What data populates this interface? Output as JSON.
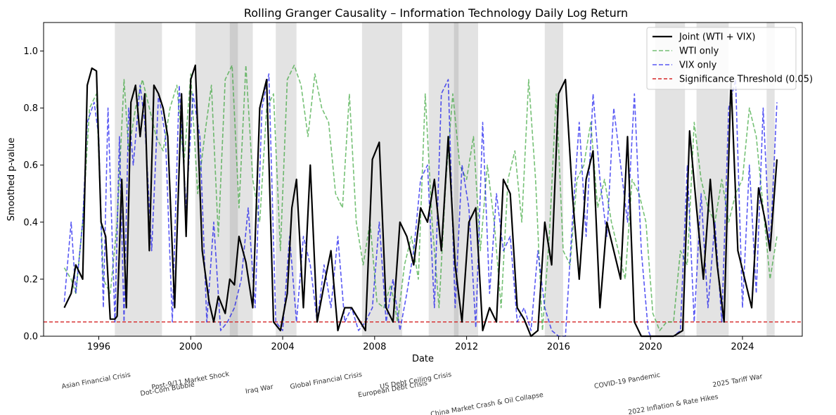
{
  "chart_data": {
    "type": "line",
    "title": "Rolling Granger Causality – Information Technology Daily Log Return",
    "xlabel": "Date",
    "ylabel": "Smoothed p-value",
    "xlim": [
      1993.6,
      2026.6
    ],
    "ylim": [
      0.0,
      1.1
    ],
    "x_ticks": [
      1996,
      2000,
      2004,
      2008,
      2012,
      2016,
      2020,
      2024
    ],
    "y_ticks": [
      0.0,
      0.2,
      0.4,
      0.6,
      0.8,
      1.0
    ],
    "grid": false,
    "legend_position": "top-right",
    "threshold": {
      "name": "Significance Threshold (0.05)",
      "value": 0.05,
      "color": "#d62728"
    },
    "series": [
      {
        "name": "Joint (WTI + VIX)",
        "color": "#000000",
        "style": "solid",
        "x": [
          1994.5,
          1994.8,
          1995.0,
          1995.3,
          1995.5,
          1995.7,
          1995.9,
          1996.1,
          1996.3,
          1996.5,
          1996.7,
          1996.8,
          1997.0,
          1997.2,
          1997.4,
          1997.6,
          1997.8,
          1998.0,
          1998.2,
          1998.4,
          1998.6,
          1998.8,
          1999.0,
          1999.3,
          1999.6,
          1999.8,
          2000.0,
          2000.2,
          2000.5,
          2000.8,
          2001.0,
          2001.2,
          2001.5,
          2001.7,
          2001.9,
          2002.1,
          2002.4,
          2002.7,
          2003.0,
          2003.3,
          2003.6,
          2003.9,
          2004.2,
          2004.4,
          2004.6,
          2004.9,
          2005.2,
          2005.5,
          2005.8,
          2006.1,
          2006.4,
          2006.7,
          2007.0,
          2007.3,
          2007.6,
          2007.9,
          2008.2,
          2008.5,
          2008.8,
          2009.1,
          2009.4,
          2009.7,
          2010.0,
          2010.3,
          2010.6,
          2010.9,
          2011.2,
          2011.5,
          2011.8,
          2012.1,
          2012.4,
          2012.7,
          2013.0,
          2013.3,
          2013.6,
          2013.9,
          2014.2,
          2014.5,
          2014.8,
          2015.1,
          2015.4,
          2015.7,
          2016.0,
          2016.3,
          2016.6,
          2016.9,
          2017.2,
          2017.5,
          2017.8,
          2018.1,
          2018.4,
          2018.7,
          2019.0,
          2019.3,
          2019.6,
          2019.9,
          2020.0,
          2020.5,
          2021.0,
          2021.4,
          2021.7,
          2022.0,
          2022.3,
          2022.6,
          2022.9,
          2023.2,
          2023.5,
          2023.8,
          2024.1,
          2024.4,
          2024.7,
          2025.0,
          2025.2,
          2025.5
        ],
        "values": [
          0.1,
          0.15,
          0.25,
          0.2,
          0.88,
          0.94,
          0.93,
          0.4,
          0.35,
          0.06,
          0.06,
          0.07,
          0.55,
          0.1,
          0.82,
          0.88,
          0.7,
          0.85,
          0.3,
          0.88,
          0.85,
          0.8,
          0.7,
          0.1,
          0.85,
          0.35,
          0.9,
          0.95,
          0.3,
          0.12,
          0.05,
          0.14,
          0.08,
          0.2,
          0.18,
          0.35,
          0.26,
          0.1,
          0.8,
          0.9,
          0.05,
          0.02,
          0.15,
          0.45,
          0.55,
          0.1,
          0.6,
          0.05,
          0.18,
          0.3,
          0.02,
          0.1,
          0.1,
          0.06,
          0.02,
          0.62,
          0.68,
          0.1,
          0.05,
          0.4,
          0.35,
          0.25,
          0.45,
          0.4,
          0.55,
          0.3,
          0.7,
          0.25,
          0.05,
          0.4,
          0.45,
          0.02,
          0.1,
          0.05,
          0.55,
          0.5,
          0.1,
          0.06,
          0.0,
          0.02,
          0.4,
          0.25,
          0.85,
          0.9,
          0.5,
          0.2,
          0.55,
          0.65,
          0.1,
          0.4,
          0.3,
          0.2,
          0.7,
          0.05,
          0.0,
          0.0,
          0.0,
          0.0,
          0.0,
          0.02,
          0.72,
          0.45,
          0.2,
          0.55,
          0.25,
          0.05,
          0.9,
          0.3,
          0.2,
          0.1,
          0.52,
          0.4,
          0.3,
          0.62
        ],
        "line_width": 2.2
      },
      {
        "name": "WTI only",
        "color": "#2ca02c",
        "style": "dashed",
        "x": [
          1994.5,
          1994.8,
          1995.0,
          1995.3,
          1995.6,
          1995.9,
          1996.2,
          1996.5,
          1996.8,
          1997.1,
          1997.3,
          1997.6,
          1997.9,
          1998.2,
          1998.5,
          1998.8,
          1999.1,
          1999.4,
          1999.7,
          2000.0,
          2000.3,
          2000.6,
          2000.9,
          2001.2,
          2001.5,
          2001.8,
          2002.1,
          2002.4,
          2002.7,
          2003.0,
          2003.3,
          2003.6,
          2003.9,
          2004.2,
          2004.5,
          2004.8,
          2005.1,
          2005.4,
          2005.7,
          2006.0,
          2006.3,
          2006.6,
          2006.9,
          2007.2,
          2007.5,
          2007.8,
          2008.1,
          2008.4,
          2008.7,
          2009.0,
          2009.3,
          2009.6,
          2009.9,
          2010.2,
          2010.5,
          2010.8,
          2011.1,
          2011.4,
          2011.7,
          2012.0,
          2012.3,
          2012.6,
          2012.9,
          2013.2,
          2013.5,
          2013.8,
          2014.1,
          2014.4,
          2014.7,
          2015.0,
          2015.3,
          2015.6,
          2015.9,
          2016.2,
          2016.5,
          2016.8,
          2017.1,
          2017.4,
          2017.7,
          2018.0,
          2018.3,
          2018.6,
          2018.9,
          2019.2,
          2019.5,
          2019.8,
          2020.1,
          2020.4,
          2020.7,
          2021.0,
          2021.3,
          2021.6,
          2021.9,
          2022.2,
          2022.5,
          2022.8,
          2023.1,
          2023.4,
          2023.7,
          2024.0,
          2024.3,
          2024.6,
          2024.9,
          2025.2,
          2025.5
        ],
        "values": [
          0.24,
          0.2,
          0.15,
          0.4,
          0.8,
          0.85,
          0.2,
          0.15,
          0.4,
          0.9,
          0.65,
          0.8,
          0.9,
          0.8,
          0.7,
          0.65,
          0.8,
          0.88,
          0.6,
          0.92,
          0.5,
          0.7,
          0.88,
          0.35,
          0.9,
          0.95,
          0.45,
          0.95,
          0.55,
          0.4,
          0.8,
          0.85,
          0.3,
          0.9,
          0.95,
          0.88,
          0.7,
          0.92,
          0.8,
          0.75,
          0.5,
          0.45,
          0.85,
          0.4,
          0.25,
          0.4,
          0.12,
          0.1,
          0.18,
          0.05,
          0.25,
          0.35,
          0.2,
          0.85,
          0.4,
          0.1,
          0.55,
          0.85,
          0.6,
          0.55,
          0.7,
          0.3,
          0.6,
          0.4,
          0.1,
          0.55,
          0.65,
          0.4,
          0.9,
          0.55,
          0.02,
          0.35,
          0.85,
          0.3,
          0.25,
          0.55,
          0.6,
          0.75,
          0.45,
          0.55,
          0.4,
          0.3,
          0.2,
          0.55,
          0.5,
          0.4,
          0.08,
          0.02,
          0.05,
          0.05,
          0.3,
          0.25,
          0.75,
          0.55,
          0.45,
          0.4,
          0.55,
          0.4,
          0.5,
          0.55,
          0.8,
          0.7,
          0.45,
          0.2,
          0.35
        ],
        "line_width": 1.6
      },
      {
        "name": "VIX only",
        "color": "#0000ee",
        "style": "dashed",
        "x": [
          1994.5,
          1994.8,
          1995.0,
          1995.3,
          1995.5,
          1995.8,
          1996.0,
          1996.2,
          1996.4,
          1996.7,
          1996.9,
          1997.1,
          1997.3,
          1997.5,
          1997.8,
          1998.0,
          1998.3,
          1998.6,
          1998.9,
          1999.2,
          1999.5,
          1999.8,
          2000.1,
          2000.4,
          2000.7,
          2001.0,
          2001.3,
          2001.6,
          2001.9,
          2002.2,
          2002.5,
          2002.8,
          2003.1,
          2003.4,
          2003.7,
          2004.0,
          2004.3,
          2004.6,
          2004.9,
          2005.2,
          2005.5,
          2005.8,
          2006.1,
          2006.4,
          2006.7,
          2007.0,
          2007.3,
          2007.6,
          2007.9,
          2008.2,
          2008.5,
          2008.8,
          2009.1,
          2009.4,
          2009.7,
          2010.0,
          2010.3,
          2010.6,
          2010.9,
          2011.2,
          2011.5,
          2011.8,
          2012.1,
          2012.4,
          2012.7,
          2013.0,
          2013.3,
          2013.6,
          2013.9,
          2014.2,
          2014.5,
          2014.8,
          2015.1,
          2015.4,
          2015.7,
          2016.0,
          2016.3,
          2016.6,
          2016.9,
          2017.2,
          2017.5,
          2017.8,
          2018.1,
          2018.4,
          2018.7,
          2019.0,
          2019.3,
          2019.6,
          2019.9,
          2020.0,
          2020.5,
          2021.0,
          2021.3,
          2021.6,
          2021.9,
          2022.2,
          2022.5,
          2022.8,
          2023.1,
          2023.4,
          2023.7,
          2024.0,
          2024.3,
          2024.6,
          2024.9,
          2025.2,
          2025.5
        ],
        "values": [
          0.12,
          0.4,
          0.15,
          0.4,
          0.75,
          0.82,
          0.7,
          0.1,
          0.8,
          0.05,
          0.7,
          0.05,
          0.8,
          0.6,
          0.88,
          0.75,
          0.3,
          0.85,
          0.7,
          0.05,
          0.88,
          0.45,
          0.85,
          0.7,
          0.05,
          0.4,
          0.02,
          0.05,
          0.1,
          0.2,
          0.45,
          0.1,
          0.8,
          0.92,
          0.05,
          0.02,
          0.35,
          0.05,
          0.35,
          0.25,
          0.05,
          0.25,
          0.1,
          0.35,
          0.05,
          0.1,
          0.02,
          0.05,
          0.1,
          0.4,
          0.05,
          0.2,
          0.02,
          0.15,
          0.3,
          0.55,
          0.6,
          0.1,
          0.85,
          0.9,
          0.1,
          0.6,
          0.45,
          0.03,
          0.75,
          0.15,
          0.5,
          0.3,
          0.35,
          0.05,
          0.1,
          0.02,
          0.3,
          0.1,
          0.02,
          0.0,
          0.0,
          0.4,
          0.75,
          0.35,
          0.85,
          0.55,
          0.35,
          0.8,
          0.6,
          0.4,
          0.85,
          0.3,
          0.02,
          0.0,
          0.0,
          0.0,
          0.02,
          0.6,
          0.05,
          0.5,
          0.1,
          0.4,
          0.05,
          0.8,
          0.9,
          0.1,
          0.6,
          0.15,
          0.8,
          0.3,
          0.82
        ],
        "line_width": 1.6
      }
    ],
    "shaded_periods": [
      {
        "label": "Asian Financial Crisis",
        "start": 1996.7,
        "end": 1998.75
      },
      {
        "label": "Dot-Com Bubble",
        "start": 2000.2,
        "end": 2002.7
      },
      {
        "label": "Post-9/11 Market Shock",
        "start": 2001.7,
        "end": 2002.05
      },
      {
        "label": "Iraq War",
        "start": 2003.7,
        "end": 2004.6
      },
      {
        "label": "Global Financial Crisis",
        "start": 2007.45,
        "end": 2009.2
      },
      {
        "label": "European Debt Crisis",
        "start": 2010.35,
        "end": 2012.5
      },
      {
        "label": "US Debt Ceiling Crisis",
        "start": 2011.45,
        "end": 2011.65
      },
      {
        "label": "China Market Crash & Oil Collapse",
        "start": 2015.4,
        "end": 2016.2
      },
      {
        "label": "COVID-19 Pandemic",
        "start": 2020.2,
        "end": 2021.5
      },
      {
        "label": "2022 Inflation & Rate Hikes",
        "start": 2022.0,
        "end": 2023.4
      },
      {
        "label": "2025 Tariff War",
        "start": 2025.05,
        "end": 2025.4
      }
    ],
    "event_labels": [
      {
        "text": "Asian Financial Crisis",
        "x": 1995.9,
        "row": 1
      },
      {
        "text": "Post-9/11 Market Shock",
        "x": 2000.0,
        "row": 1
      },
      {
        "text": "Dot-Com Bubble",
        "x": 1999.0,
        "row": 2
      },
      {
        "text": "Iraq War",
        "x": 2003.0,
        "row": 2
      },
      {
        "text": "Global Financial Crisis",
        "x": 2005.9,
        "row": 1
      },
      {
        "text": "US Debt Ceiling Crisis",
        "x": 2009.8,
        "row": 1
      },
      {
        "text": "European Debt Crisis",
        "x": 2008.8,
        "row": 2
      },
      {
        "text": "China Market Crash & Oil Collapse",
        "x": 2012.9,
        "row": 3
      },
      {
        "text": "COVID-19 Pandemic",
        "x": 2019.0,
        "row": 1
      },
      {
        "text": "2022 Inflation & Rate Hikes",
        "x": 2021.0,
        "row": 3
      },
      {
        "text": "2025 Tariff War",
        "x": 2023.8,
        "row": 1
      }
    ]
  }
}
